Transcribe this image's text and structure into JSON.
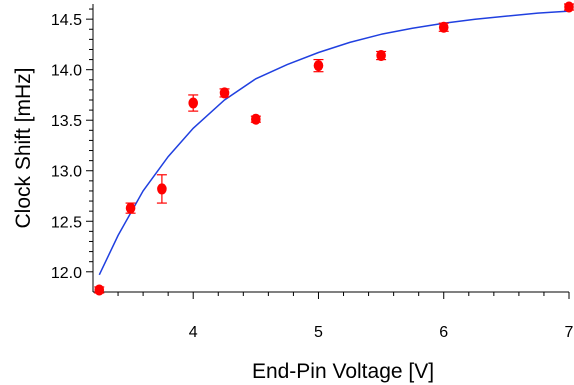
{
  "chart_data": {
    "type": "scatter",
    "title": "",
    "xlabel": "End-Pin Voltage [V]",
    "ylabel": "Clock Shift [mHz]",
    "xlim": [
      3.2,
      7.0
    ],
    "ylim": [
      11.8,
      14.65
    ],
    "x_ticks": [
      4,
      5,
      6,
      7
    ],
    "x_tick_labels": [
      "4",
      "5",
      "6",
      "7"
    ],
    "y_ticks": [
      12.0,
      12.5,
      13.0,
      13.5,
      14.0,
      14.5
    ],
    "y_tick_labels": [
      "12.0",
      "12.5",
      "13.0",
      "13.5",
      "14.0",
      "14.5"
    ],
    "grid": false,
    "legend": "none",
    "series": [
      {
        "kind": "points-with-error-bars",
        "color": "#ff0000",
        "points": [
          {
            "x": 3.25,
            "y": 11.82,
            "err": 0.03
          },
          {
            "x": 3.5,
            "y": 12.63,
            "err": 0.05
          },
          {
            "x": 3.75,
            "y": 12.82,
            "err": 0.14
          },
          {
            "x": 4.0,
            "y": 13.67,
            "err": 0.08
          },
          {
            "x": 4.25,
            "y": 13.77,
            "err": 0.04
          },
          {
            "x": 4.5,
            "y": 13.51,
            "err": 0.03
          },
          {
            "x": 5.0,
            "y": 14.04,
            "err": 0.06
          },
          {
            "x": 5.5,
            "y": 14.14,
            "err": 0.04
          },
          {
            "x": 6.0,
            "y": 14.42,
            "err": 0.04
          },
          {
            "x": 7.0,
            "y": 14.62,
            "err": 0.03
          }
        ]
      },
      {
        "kind": "fit-curve",
        "color": "#2040e0",
        "x": [
          3.25,
          3.4,
          3.6,
          3.8,
          4.0,
          4.25,
          4.5,
          4.75,
          5.0,
          5.25,
          5.5,
          5.75,
          6.0,
          6.25,
          6.5,
          6.75,
          7.0
        ],
        "y": [
          11.97,
          12.36,
          12.8,
          13.14,
          13.42,
          13.7,
          13.91,
          14.05,
          14.17,
          14.27,
          14.35,
          14.41,
          14.46,
          14.5,
          14.53,
          14.56,
          14.58
        ]
      }
    ]
  }
}
